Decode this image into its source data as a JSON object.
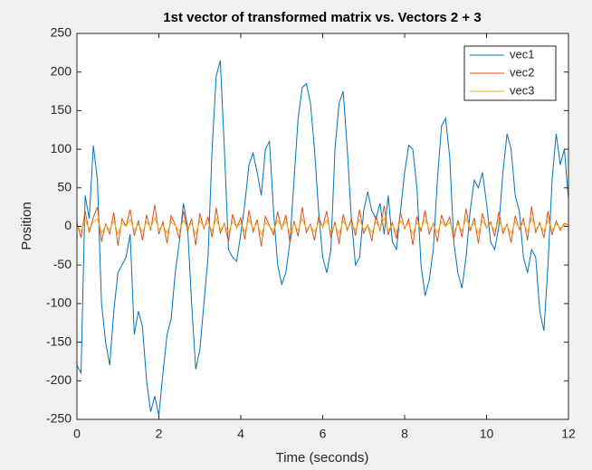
{
  "chart_data": {
    "type": "line",
    "title": "1st vector of transformed matrix vs. Vectors 2 + 3",
    "xlabel": "Time (seconds)",
    "ylabel": "Position",
    "xlim": [
      0,
      12
    ],
    "xticks": [
      0,
      2,
      4,
      6,
      8,
      10,
      12
    ],
    "ylim": [
      -250,
      250
    ],
    "yticks": [
      -250,
      -200,
      -150,
      -100,
      -50,
      0,
      50,
      100,
      150,
      200,
      250
    ],
    "grid": false,
    "legend": "northeast",
    "x": [
      0,
      0.1,
      0.2,
      0.3,
      0.4,
      0.5,
      0.6,
      0.7,
      0.8,
      0.9,
      1,
      1.1,
      1.2,
      1.3,
      1.4,
      1.5,
      1.6,
      1.7,
      1.8,
      1.9,
      2,
      2.1,
      2.2,
      2.3,
      2.4,
      2.5,
      2.6,
      2.7,
      2.8,
      2.9,
      3,
      3.1,
      3.2,
      3.3,
      3.4,
      3.5,
      3.6,
      3.7,
      3.8,
      3.9,
      4,
      4.1,
      4.2,
      4.3,
      4.4,
      4.5,
      4.6,
      4.7,
      4.8,
      4.9,
      5,
      5.1,
      5.2,
      5.3,
      5.4,
      5.5,
      5.6,
      5.7,
      5.8,
      5.9,
      6,
      6.1,
      6.2,
      6.3,
      6.4,
      6.5,
      6.6,
      6.7,
      6.8,
      6.9,
      7,
      7.1,
      7.2,
      7.3,
      7.4,
      7.5,
      7.6,
      7.7,
      7.8,
      7.9,
      8,
      8.1,
      8.2,
      8.3,
      8.4,
      8.5,
      8.6,
      8.7,
      8.8,
      8.9,
      9,
      9.1,
      9.2,
      9.3,
      9.4,
      9.5,
      9.6,
      9.7,
      9.8,
      9.9,
      10,
      10.1,
      10.2,
      10.3,
      10.4,
      10.5,
      10.6,
      10.7,
      10.8,
      10.9,
      11,
      11.1,
      11.2,
      11.3,
      11.4,
      11.5,
      11.6,
      11.7,
      11.8,
      11.9,
      12
    ],
    "series": [
      {
        "name": "vec1",
        "color": "#0072bd",
        "values": [
          -180,
          -190,
          40,
          10,
          105,
          60,
          -100,
          -150,
          -180,
          -110,
          -60,
          -50,
          -40,
          -10,
          -140,
          -110,
          -130,
          -200,
          -240,
          -220,
          -245,
          -190,
          -140,
          -120,
          -60,
          -20,
          30,
          0,
          -100,
          -185,
          -160,
          -100,
          -40,
          100,
          195,
          215,
          100,
          -30,
          -40,
          -45,
          -10,
          30,
          80,
          95,
          70,
          40,
          100,
          110,
          20,
          -50,
          -75,
          -60,
          -20,
          60,
          140,
          180,
          185,
          160,
          100,
          20,
          -40,
          -60,
          -30,
          100,
          160,
          175,
          100,
          10,
          -50,
          -40,
          20,
          45,
          20,
          10,
          30,
          -10,
          40,
          -20,
          -30,
          20,
          70,
          105,
          100,
          50,
          -50,
          -90,
          -70,
          -30,
          60,
          130,
          140,
          90,
          -20,
          -60,
          -80,
          -40,
          20,
          60,
          50,
          70,
          30,
          -20,
          -30,
          0,
          70,
          120,
          100,
          40,
          20,
          -40,
          -60,
          -30,
          -40,
          -110,
          -135,
          -50,
          60,
          120,
          80,
          100,
          35
        ]
      },
      {
        "name": "vec2",
        "color": "#d95319",
        "values": [
          5,
          -15,
          20,
          -8,
          12,
          25,
          -20,
          3,
          -10,
          18,
          -25,
          10,
          0,
          22,
          -12,
          8,
          -18,
          15,
          -5,
          28,
          -10,
          6,
          -22,
          14,
          2,
          -16,
          20,
          -6,
          10,
          -24,
          17,
          -3,
          12,
          -14,
          24,
          -9,
          4,
          -20,
          16,
          -2,
          11,
          -17,
          21,
          -7,
          9,
          -26,
          13,
          1,
          -11,
          19,
          -4,
          15,
          -21,
          7,
          -13,
          25,
          -8,
          3,
          -18,
          12,
          -1,
          20,
          -15,
          6,
          -23,
          16,
          -5,
          10,
          -12,
          22,
          -9,
          2,
          -19,
          14,
          -6,
          27,
          -11,
          5,
          -16,
          18,
          -3,
          9,
          -24,
          13,
          -7,
          21,
          -10,
          4,
          -20,
          15,
          0,
          12,
          -17,
          8,
          -14,
          23,
          -6,
          11,
          -22,
          17,
          -2,
          6,
          -13,
          19,
          -9,
          3,
          -21,
          14,
          -4,
          10,
          -18,
          26,
          -8,
          5,
          -15,
          20,
          -11,
          7,
          -5,
          4,
          2
        ]
      },
      {
        "name": "vec3",
        "color": "#edb120",
        "values": [
          2,
          -6,
          8,
          -3,
          5,
          10,
          -8,
          1,
          -4,
          7,
          -10,
          4,
          0,
          9,
          -5,
          3,
          -7,
          6,
          -2,
          11,
          -4,
          2,
          -9,
          6,
          1,
          -6,
          8,
          -2,
          4,
          -10,
          7,
          -1,
          5,
          -6,
          10,
          -4,
          2,
          -8,
          6,
          -1,
          4,
          -7,
          9,
          -3,
          4,
          -11,
          5,
          0,
          -5,
          8,
          -2,
          6,
          -9,
          3,
          -5,
          10,
          -3,
          1,
          -7,
          5,
          0,
          8,
          -6,
          2,
          -9,
          7,
          -2,
          4,
          -5,
          9,
          -4,
          1,
          -8,
          6,
          -3,
          11,
          -5,
          2,
          -7,
          7,
          -1,
          4,
          -10,
          5,
          -3,
          9,
          -4,
          2,
          -8,
          6,
          0,
          5,
          -7,
          3,
          -6,
          10,
          -2,
          4,
          -9,
          7,
          -1,
          3,
          -5,
          8,
          -4,
          1,
          -9,
          6,
          -2,
          4,
          -7,
          11,
          -3,
          2,
          -6,
          8,
          -5,
          3,
          -2,
          1,
          3
        ]
      }
    ]
  }
}
